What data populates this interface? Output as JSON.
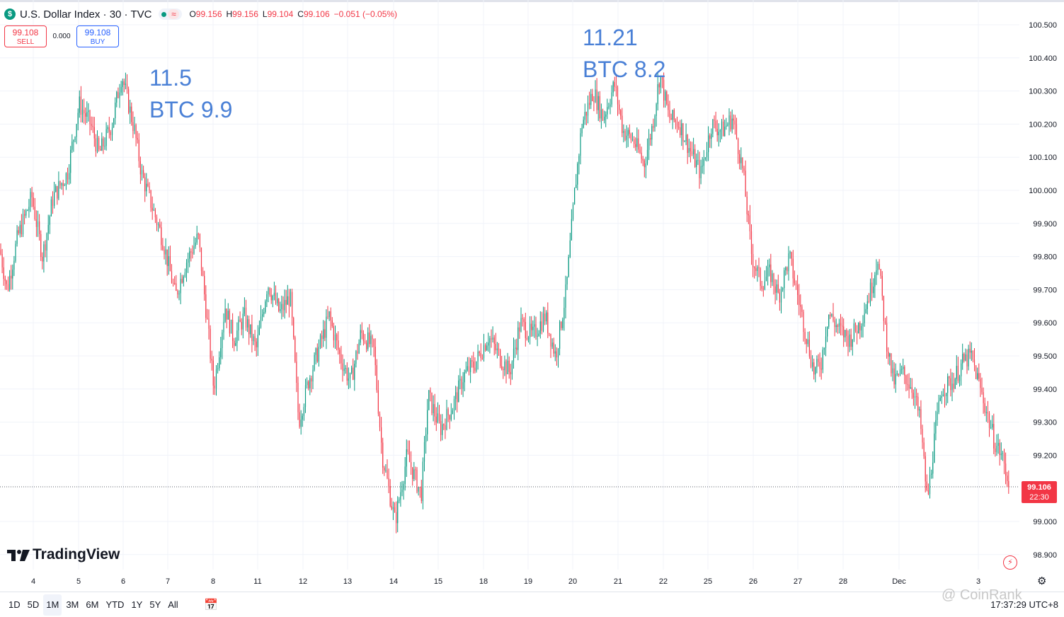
{
  "header": {
    "title": "U.S. Dollar Index · 30 · TVC",
    "logo": "$",
    "status_icon": "≈",
    "ohlc": [
      {
        "k": "O",
        "v": "99.156"
      },
      {
        "k": "H",
        "v": "99.156"
      },
      {
        "k": "L",
        "v": "99.104"
      },
      {
        "k": "C",
        "v": "99.106"
      },
      {
        "k": "",
        "v": "−0.051 (−0.05%)"
      }
    ]
  },
  "trade": {
    "sell_price": "99.108",
    "sell_label": "SELL",
    "spread": "0.000",
    "buy_price": "99.108",
    "buy_label": "BUY"
  },
  "annotations": {
    "a1_line1": "11.5",
    "a1_line2": "BTC 9.9",
    "a2_line1": "11.21",
    "a2_line2": "BTC 8.2"
  },
  "brand": "TradingView",
  "price_tag": {
    "price": "99.106",
    "countdown": "22:30"
  },
  "toolbar": {
    "timeframes": [
      "1D",
      "5D",
      "1M",
      "3M",
      "6M",
      "YTD",
      "1Y",
      "5Y",
      "All"
    ],
    "active": "1M",
    "clock": "17:37:29 UTC+8"
  },
  "watermark": "@ CoinRank",
  "colors": {
    "up": "#089981",
    "down": "#f23645",
    "annotation": "#4a80d6"
  },
  "chart_data": {
    "type": "candlestick",
    "ylim": [
      98.85,
      100.55
    ],
    "yticks": [
      "100.500",
      "100.400",
      "100.300",
      "100.200",
      "100.100",
      "100.000",
      "99.900",
      "99.800",
      "99.700",
      "99.600",
      "99.500",
      "99.400",
      "99.300",
      "99.200",
      "99.000",
      "98.900"
    ],
    "x_labels": [
      "4",
      "5",
      "6",
      "7",
      "8",
      "11",
      "12",
      "13",
      "14",
      "15",
      "18",
      "19",
      "20",
      "21",
      "22",
      "25",
      "26",
      "27",
      "28",
      "Dec",
      "3"
    ],
    "last_price": 99.106,
    "path": [
      [
        0,
        99.82
      ],
      [
        10,
        99.7
      ],
      [
        25,
        99.86
      ],
      [
        45,
        99.98
      ],
      [
        60,
        99.8
      ],
      [
        75,
        99.98
      ],
      [
        95,
        100.05
      ],
      [
        112,
        100.26
      ],
      [
        128,
        100.2
      ],
      [
        140,
        100.11
      ],
      [
        158,
        100.2
      ],
      [
        172,
        100.35
      ],
      [
        190,
        100.18
      ],
      [
        200,
        100.05
      ],
      [
        215,
        99.95
      ],
      [
        230,
        99.85
      ],
      [
        248,
        99.68
      ],
      [
        262,
        99.78
      ],
      [
        280,
        99.86
      ],
      [
        292,
        99.62
      ],
      [
        302,
        99.4
      ],
      [
        318,
        99.65
      ],
      [
        330,
        99.55
      ],
      [
        345,
        99.62
      ],
      [
        362,
        99.52
      ],
      [
        378,
        99.72
      ],
      [
        395,
        99.63
      ],
      [
        410,
        99.68
      ],
      [
        422,
        99.3
      ],
      [
        435,
        99.42
      ],
      [
        450,
        99.52
      ],
      [
        465,
        99.62
      ],
      [
        480,
        99.5
      ],
      [
        495,
        99.42
      ],
      [
        510,
        99.57
      ],
      [
        528,
        99.52
      ],
      [
        540,
        99.2
      ],
      [
        558,
        99.0
      ],
      [
        575,
        99.2
      ],
      [
        595,
        99.08
      ],
      [
        605,
        99.38
      ],
      [
        622,
        99.28
      ],
      [
        640,
        99.35
      ],
      [
        655,
        99.44
      ],
      [
        672,
        99.48
      ],
      [
        690,
        99.56
      ],
      [
        705,
        99.5
      ],
      [
        720,
        99.45
      ],
      [
        735,
        99.6
      ],
      [
        752,
        99.56
      ],
      [
        770,
        99.62
      ],
      [
        785,
        99.5
      ],
      [
        800,
        99.7
      ],
      [
        812,
        100.0
      ],
      [
        822,
        100.2
      ],
      [
        838,
        100.3
      ],
      [
        852,
        100.22
      ],
      [
        868,
        100.32
      ],
      [
        880,
        100.18
      ],
      [
        895,
        100.15
      ],
      [
        910,
        100.08
      ],
      [
        922,
        100.2
      ],
      [
        932,
        100.35
      ],
      [
        945,
        100.22
      ],
      [
        960,
        100.2
      ],
      [
        975,
        100.12
      ],
      [
        990,
        100.05
      ],
      [
        1005,
        100.2
      ],
      [
        1020,
        100.18
      ],
      [
        1035,
        100.22
      ],
      [
        1050,
        100.05
      ],
      [
        1062,
        99.8
      ],
      [
        1075,
        99.72
      ],
      [
        1088,
        99.75
      ],
      [
        1100,
        99.68
      ],
      [
        1115,
        99.8
      ],
      [
        1125,
        99.7
      ],
      [
        1135,
        99.6
      ],
      [
        1150,
        99.45
      ],
      [
        1160,
        99.48
      ],
      [
        1170,
        99.63
      ],
      [
        1185,
        99.58
      ],
      [
        1200,
        99.55
      ],
      [
        1215,
        99.6
      ],
      [
        1230,
        99.7
      ],
      [
        1240,
        99.8
      ],
      [
        1252,
        99.55
      ],
      [
        1262,
        99.42
      ],
      [
        1275,
        99.45
      ],
      [
        1290,
        99.4
      ],
      [
        1300,
        99.3
      ],
      [
        1310,
        99.06
      ],
      [
        1320,
        99.25
      ],
      [
        1330,
        99.4
      ],
      [
        1345,
        99.42
      ],
      [
        1360,
        99.48
      ],
      [
        1372,
        99.5
      ],
      [
        1385,
        99.4
      ],
      [
        1395,
        99.32
      ],
      [
        1405,
        99.24
      ],
      [
        1415,
        99.2
      ],
      [
        1426,
        99.106
      ]
    ]
  }
}
